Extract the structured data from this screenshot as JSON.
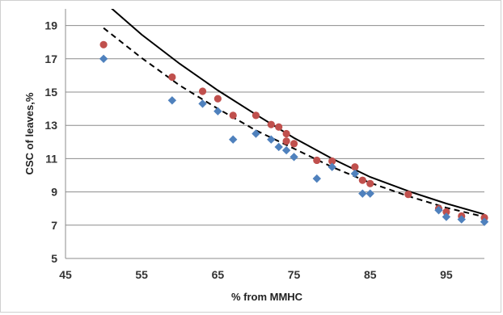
{
  "chart_data": {
    "type": "scatter",
    "xlabel": "%  from MMHC",
    "ylabel": "CSC of leaves,%",
    "xlim": [
      45,
      100
    ],
    "ylim": [
      5,
      20
    ],
    "x_ticks": [
      45,
      55,
      65,
      75,
      85,
      95
    ],
    "y_ticks": [
      5,
      7,
      9,
      11,
      13,
      15,
      17,
      19
    ],
    "grid": "horizontal",
    "legend": "none",
    "series": [
      {
        "marker": "circle",
        "color": "#c0504d",
        "points": [
          [
            50,
            17.85
          ],
          [
            59,
            15.9
          ],
          [
            63,
            15.05
          ],
          [
            65,
            14.6
          ],
          [
            67,
            13.6
          ],
          [
            70,
            13.6
          ],
          [
            72,
            13.05
          ],
          [
            73,
            12.9
          ],
          [
            74,
            12.5
          ],
          [
            74,
            12.05
          ],
          [
            75,
            11.9
          ],
          [
            78,
            10.9
          ],
          [
            80,
            10.85
          ],
          [
            83,
            10.5
          ],
          [
            84,
            9.7
          ],
          [
            85,
            9.5
          ],
          [
            90,
            8.85
          ],
          [
            94,
            8.0
          ],
          [
            95,
            7.8
          ],
          [
            97,
            7.55
          ],
          [
            100,
            7.45
          ]
        ]
      },
      {
        "marker": "diamond",
        "color": "#4f81bd",
        "points": [
          [
            50,
            17.0
          ],
          [
            59,
            14.5
          ],
          [
            63,
            14.3
          ],
          [
            65,
            13.85
          ],
          [
            67,
            12.15
          ],
          [
            70,
            12.5
          ],
          [
            72,
            12.15
          ],
          [
            73,
            11.7
          ],
          [
            74,
            11.5
          ],
          [
            75,
            11.1
          ],
          [
            78,
            9.8
          ],
          [
            80,
            10.5
          ],
          [
            83,
            10.1
          ],
          [
            84,
            8.9
          ],
          [
            85,
            8.9
          ],
          [
            94,
            7.9
          ],
          [
            95,
            7.5
          ],
          [
            97,
            7.35
          ],
          [
            100,
            7.2
          ]
        ]
      }
    ],
    "trendlines": [
      {
        "style": "solid",
        "color": "#000000",
        "x_range": [
          51,
          100
        ],
        "points": [
          [
            51,
            20.05
          ],
          [
            55,
            18.45
          ],
          [
            60,
            16.7
          ],
          [
            65,
            15.1
          ],
          [
            70,
            13.65
          ],
          [
            75,
            12.25
          ],
          [
            80,
            11.0
          ],
          [
            85,
            9.9
          ],
          [
            90,
            9.05
          ],
          [
            95,
            8.3
          ],
          [
            100,
            7.65
          ]
        ]
      },
      {
        "style": "dashed",
        "color": "#000000",
        "x_range": [
          50,
          100
        ],
        "points": [
          [
            50,
            18.85
          ],
          [
            55,
            17.05
          ],
          [
            60,
            15.4
          ],
          [
            65,
            14.0
          ],
          [
            70,
            12.7
          ],
          [
            75,
            11.6
          ],
          [
            80,
            10.5
          ],
          [
            85,
            9.55
          ],
          [
            90,
            8.75
          ],
          [
            95,
            8.05
          ],
          [
            100,
            7.5
          ]
        ]
      }
    ]
  }
}
